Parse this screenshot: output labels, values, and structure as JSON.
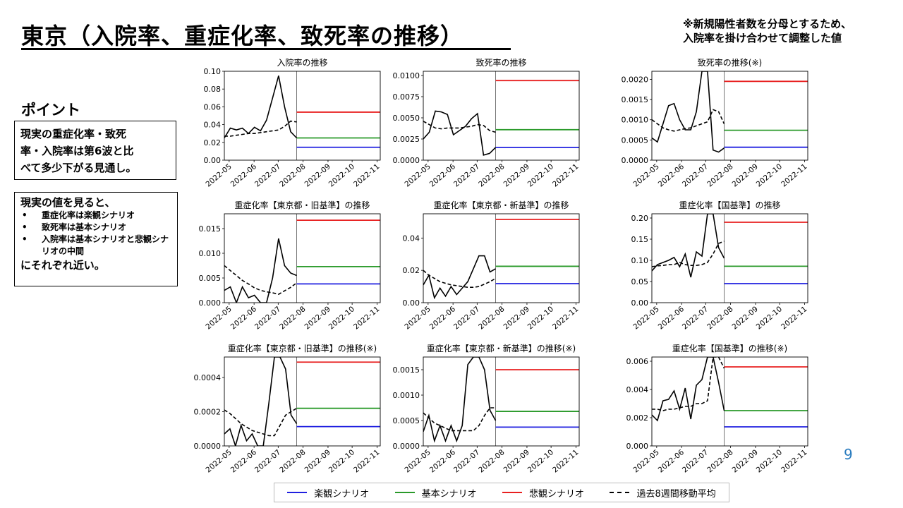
{
  "page": {
    "title": "東京（入院率、重症化率、致死率の推移）",
    "note_line1": "※新規陽性者数を分母とするため、",
    "note_line2": "入院率を掛け合わせて調整した値",
    "point_heading": "ポイント",
    "box1_line1": "現実の重症化率・致死",
    "box1_line2": "率・入院率は第6波と比",
    "box1_line3": "べて多少下がる見通し。",
    "box2_lead": "現実の値を見ると、",
    "box2_items": [
      "重症化率は楽観シナリオ",
      "致死率は基本シナリオ",
      "入院率は基本シナリオと悲観シナリオの中間"
    ],
    "box2_tail": "にそれぞれ近い。",
    "page_number": "9"
  },
  "legend": [
    {
      "label": "楽観シナリオ",
      "color": "#2020e0",
      "style": "solid"
    },
    {
      "label": "基本シナリオ",
      "color": "#2a9a2a",
      "style": "solid"
    },
    {
      "label": "悲観シナリオ",
      "color": "#e82020",
      "style": "solid"
    },
    {
      "label": "過去8週間移動平均",
      "color": "#000000",
      "style": "dashed"
    }
  ],
  "chart_data": [
    {
      "type": "line",
      "title": "入院率の推移",
      "x_ticks": [
        "2022-05",
        "2022-06",
        "2022-07",
        "2022-08",
        "2022-09",
        "2022-10",
        "2022-11"
      ],
      "ylim": [
        0,
        0.1
      ],
      "y_ticks": [
        "0.00",
        "0.02",
        "0.04",
        "0.06",
        "0.08",
        "0.10"
      ],
      "split_x": "2022-07-24",
      "actual": [
        0.025,
        0.036,
        0.034,
        0.036,
        0.03,
        0.037,
        0.033,
        0.045,
        0.07,
        0.095,
        0.06,
        0.032,
        0.025
      ],
      "moving_avg": [
        0.027,
        0.027,
        0.028,
        0.029,
        0.03,
        0.03,
        0.031,
        0.032,
        0.033,
        0.034,
        0.038,
        0.044,
        0.043
      ],
      "scenarios": {
        "optimistic": 0.0145,
        "base": 0.025,
        "pessimistic": 0.054
      }
    },
    {
      "type": "line",
      "title": "致死率の推移",
      "x_ticks": [
        "2022-05",
        "2022-06",
        "2022-07",
        "2022-08",
        "2022-09",
        "2022-10",
        "2022-11"
      ],
      "ylim": [
        0,
        0.0105
      ],
      "y_ticks": [
        "0.0000",
        "0.0025",
        "0.0050",
        "0.0075",
        "0.0100"
      ],
      "split_x": "2022-07-24",
      "actual": [
        0.0025,
        0.0033,
        0.0058,
        0.0057,
        0.0054,
        0.003,
        0.0035,
        0.004,
        0.0049,
        0.0055,
        0.0006,
        0.0008,
        0.0015
      ],
      "moving_avg": [
        0.0046,
        0.0042,
        0.0038,
        0.0037,
        0.0038,
        0.0038,
        0.0038,
        0.0039,
        0.004,
        0.0042,
        0.0041,
        0.0035,
        0.0033
      ],
      "scenarios": {
        "optimistic": 0.0015,
        "base": 0.0036,
        "pessimistic": 0.0094
      }
    },
    {
      "type": "line",
      "title": "致死率の推移(※)",
      "x_ticks": [
        "2022-05",
        "2022-06",
        "2022-07",
        "2022-08",
        "2022-09",
        "2022-10",
        "2022-11"
      ],
      "ylim": [
        0,
        0.0022
      ],
      "y_ticks": [
        "0.0000",
        "0.0005",
        "0.0010",
        "0.0015",
        "0.0020"
      ],
      "split_x": "2022-07-24",
      "actual": [
        0.00055,
        0.00045,
        0.0009,
        0.00135,
        0.0014,
        0.001,
        0.00075,
        0.00075,
        0.0012,
        0.0022,
        0.0024,
        0.00025,
        0.0002,
        0.0003
      ],
      "moving_avg": [
        0.001,
        0.0009,
        0.0008,
        0.00075,
        0.00072,
        0.00075,
        0.00078,
        0.0008,
        0.00085,
        0.0009,
        0.00095,
        0.00125,
        0.0012,
        0.0009
      ],
      "scenarios": {
        "optimistic": 0.00032,
        "base": 0.00074,
        "pessimistic": 0.00195
      }
    },
    {
      "type": "line",
      "title": "重症化率【東京都・旧基準】の推移",
      "x_ticks": [
        "2022-05",
        "2022-06",
        "2022-07",
        "2022-08",
        "2022-09",
        "2022-10",
        "2022-11"
      ],
      "ylim": [
        0,
        0.018
      ],
      "y_ticks": [
        "0.000",
        "0.005",
        "0.010",
        "0.015"
      ],
      "split_x": "2022-07-24",
      "actual": [
        0.0025,
        0.0032,
        0,
        0.0032,
        0.001,
        0.0015,
        0,
        0,
        0.005,
        0.013,
        0.0075,
        0.006,
        0.0055
      ],
      "moving_avg": [
        0.0075,
        0.0065,
        0.0055,
        0.0045,
        0.0038,
        0.003,
        0.0025,
        0.0022,
        0.002,
        0.0017,
        0.0024,
        0.0031,
        0.004
      ],
      "scenarios": {
        "optimistic": 0.0038,
        "base": 0.0073,
        "pessimistic": 0.0167
      }
    },
    {
      "type": "line",
      "title": "重症化率【東京都・新基準】の推移",
      "x_ticks": [
        "2022-05",
        "2022-06",
        "2022-07",
        "2022-08",
        "2022-09",
        "2022-10",
        "2022-11"
      ],
      "ylim": [
        0,
        0.055
      ],
      "y_ticks": [
        "0.00",
        "0.02",
        "0.04"
      ],
      "split_x": "2022-07-24",
      "actual": [
        0.011,
        0.017,
        0.003,
        0.009,
        0.004,
        0.01,
        0.005,
        0.009,
        0.013,
        0.021,
        0.029,
        0.029,
        0.019,
        0.021
      ],
      "moving_avg": [
        0.02,
        0.017,
        0.015,
        0.013,
        0.012,
        0.011,
        0.0105,
        0.01,
        0.0095,
        0.0095,
        0.01,
        0.0115,
        0.013,
        0.015
      ],
      "scenarios": {
        "optimistic": 0.0118,
        "base": 0.0225,
        "pessimistic": 0.0515
      }
    },
    {
      "type": "line",
      "title": "重症化率【国基準】の推移",
      "x_ticks": [
        "2022-05",
        "2022-06",
        "2022-07",
        "2022-08",
        "2022-09",
        "2022-10",
        "2022-11"
      ],
      "ylim": [
        0,
        0.21
      ],
      "y_ticks": [
        "0.00",
        "0.05",
        "0.10",
        "0.15",
        "0.20"
      ],
      "split_x": "2022-07-24",
      "actual": [
        0.075,
        0.09,
        0.095,
        0.1,
        0.107,
        0.085,
        0.115,
        0.06,
        0.12,
        0.11,
        0.22,
        0.22,
        0.13,
        0.105
      ],
      "moving_avg": [
        0.085,
        0.087,
        0.088,
        0.09,
        0.09,
        0.095,
        0.09,
        0.088,
        0.088,
        0.09,
        0.095,
        0.115,
        0.14,
        0.145
      ],
      "scenarios": {
        "optimistic": 0.045,
        "base": 0.086,
        "pessimistic": 0.19
      }
    },
    {
      "type": "line",
      "title": "重症化率【東京都・旧基準】の推移(※)",
      "x_ticks": [
        "2022-05",
        "2022-06",
        "2022-07",
        "2022-08",
        "2022-09",
        "2022-10",
        "2022-11"
      ],
      "ylim": [
        0,
        0.00052
      ],
      "y_ticks": [
        "0.0000",
        "0.0002",
        "0.0004"
      ],
      "split_x": "2022-07-24",
      "actual": [
        7e-05,
        0.0001,
        0,
        0.00012,
        3e-05,
        7e-05,
        0,
        0,
        0.00025,
        0.0006,
        0.0006,
        0.00045,
        0.00018,
        0.00013
      ],
      "moving_avg": [
        0.00021,
        0.00019,
        0.00016,
        0.00013,
        0.00011,
        9e-05,
        8e-05,
        7e-05,
        6e-05,
        6e-05,
        0.00012,
        0.00018,
        0.0002,
        0.00022
      ],
      "scenarios": {
        "optimistic": 0.000113,
        "base": 0.00022,
        "pessimistic": 0.00049
      }
    },
    {
      "type": "line",
      "title": "重症化率【東京都・新基準】の推移(※)",
      "x_ticks": [
        "2022-05",
        "2022-06",
        "2022-07",
        "2022-08",
        "2022-09",
        "2022-10",
        "2022-11"
      ],
      "ylim": [
        0,
        0.00175
      ],
      "y_ticks": [
        "0.0000",
        "0.0005",
        "0.0010",
        "0.0015"
      ],
      "split_x": "2022-07-24",
      "actual": [
        0.00028,
        0.0006,
        0.0001,
        0.0004,
        0.0001,
        0.0004,
        0.0001,
        0.0004,
        0.0016,
        0.0018,
        0.0018,
        0.0015,
        0.0007,
        0.0005
      ],
      "moving_avg": [
        0.00065,
        0.00055,
        0.00045,
        0.0004,
        0.00035,
        0.0003,
        0.0003,
        0.0003,
        0.0003,
        0.0003,
        0.0004,
        0.0006,
        0.00075,
        0.00075
      ],
      "scenarios": {
        "optimistic": 0.00037,
        "base": 0.00068,
        "pessimistic": 0.0015
      }
    },
    {
      "type": "line",
      "title": "重症化率【国基準】の推移(※)",
      "x_ticks": [
        "2022-05",
        "2022-06",
        "2022-07",
        "2022-08",
        "2022-09",
        "2022-10",
        "2022-11"
      ],
      "ylim": [
        0,
        0.0063
      ],
      "y_ticks": [
        "0.000",
        "0.002",
        "0.004",
        "0.006"
      ],
      "split_x": "2022-07-24",
      "actual": [
        0.0022,
        0.0018,
        0.0032,
        0.0033,
        0.0039,
        0.0026,
        0.0041,
        0.0019,
        0.0043,
        0.0047,
        0.0068,
        0.0068,
        0.0045,
        0.0025
      ],
      "moving_avg": [
        0.0026,
        0.0026,
        0.0025,
        0.0026,
        0.0026,
        0.0027,
        0.0028,
        0.0028,
        0.003,
        0.003,
        0.0032,
        0.0067,
        0.0068,
        0.0055
      ],
      "scenarios": {
        "optimistic": 0.00135,
        "base": 0.0025,
        "pessimistic": 0.0056
      }
    }
  ]
}
